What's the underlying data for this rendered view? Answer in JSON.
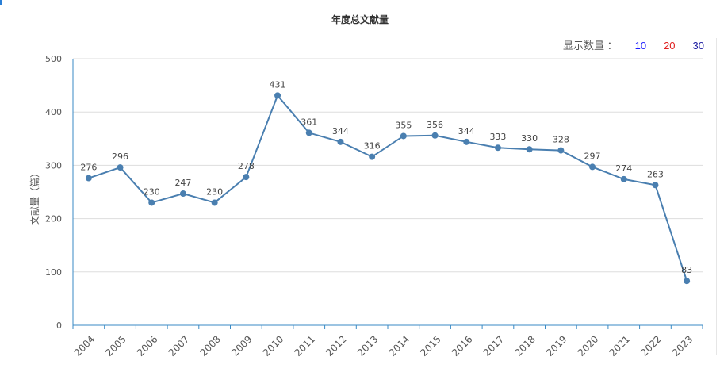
{
  "chart_data": {
    "type": "line",
    "title": "年度总文献量",
    "ylabel": "文献量（篇）",
    "xlabel": "",
    "ylim": [
      0,
      500
    ],
    "yticks": [
      0,
      100,
      200,
      300,
      400,
      500
    ],
    "grid": true,
    "x": [
      "2004",
      "2005",
      "2006",
      "2007",
      "2008",
      "2009",
      "2010",
      "2011",
      "2012",
      "2013",
      "2014",
      "2015",
      "2016",
      "2017",
      "2018",
      "2019",
      "2020",
      "2021",
      "2022",
      "2023"
    ],
    "series": [
      {
        "values": [
          276,
          296,
          230,
          247,
          230,
          278,
          431,
          361,
          344,
          316,
          355,
          356,
          344,
          333,
          330,
          328,
          297,
          274,
          263,
          83
        ]
      }
    ],
    "colors": {
      "line": "#4a7fb0",
      "axis": "#3a8ac4",
      "grid": "#dddddd"
    }
  },
  "controls": {
    "label": "显示数量 ：",
    "options": [
      {
        "text": "10",
        "color": "#1a1aff"
      },
      {
        "text": "20",
        "color": "#e02020"
      },
      {
        "text": "30",
        "color": "#1a1aa0"
      }
    ]
  }
}
